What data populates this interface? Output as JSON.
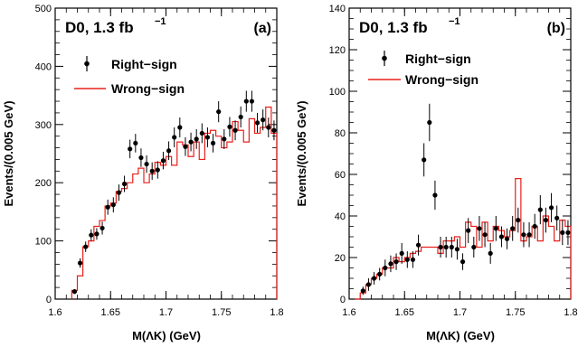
{
  "chart_data": [
    {
      "type": "scatter",
      "panel_label": "(a)",
      "title_main": "D0, 1.3 fb",
      "title_sup": "−1",
      "xlabel": "M(ΛK) (GeV)",
      "ylabel": "Events/(0.005 GeV)",
      "xlim": [
        1.6,
        1.8
      ],
      "ylim": [
        0,
        500
      ],
      "xticks": [
        "1.6",
        "1.65",
        "1.7",
        "1.75",
        "1.8"
      ],
      "yticks": [
        "0",
        "100",
        "200",
        "300",
        "400",
        "500"
      ],
      "legend_position": "top-left",
      "series": [
        {
          "name": "Right−sign",
          "style": "points-with-error-bars",
          "color": "#000000",
          "x": [
            1.6175,
            1.6225,
            1.6275,
            1.6325,
            1.6375,
            1.6425,
            1.6475,
            1.6525,
            1.6575,
            1.6625,
            1.6675,
            1.6725,
            1.6775,
            1.6825,
            1.6875,
            1.6925,
            1.6975,
            1.7025,
            1.7075,
            1.7125,
            1.7175,
            1.7225,
            1.7275,
            1.7325,
            1.7375,
            1.7425,
            1.7475,
            1.7525,
            1.7575,
            1.7625,
            1.7675,
            1.7725,
            1.7775,
            1.7825,
            1.7875,
            1.7925,
            1.7975
          ],
          "y": [
            13,
            62,
            90,
            110,
            112,
            122,
            158,
            162,
            183,
            198,
            258,
            268,
            243,
            232,
            220,
            222,
            238,
            255,
            278,
            295,
            262,
            270,
            275,
            285,
            278,
            268,
            322,
            275,
            296,
            290,
            313,
            340,
            340,
            303,
            308,
            295,
            290
          ],
          "yerr": [
            4,
            8,
            9,
            10,
            10,
            11,
            13,
            13,
            14,
            14,
            16,
            16,
            16,
            15,
            15,
            15,
            15,
            16,
            17,
            17,
            16,
            16,
            17,
            17,
            17,
            16,
            18,
            17,
            17,
            17,
            18,
            18,
            18,
            17,
            18,
            17,
            17
          ]
        },
        {
          "name": "Wrong−sign",
          "style": "step",
          "color": "#e8201c",
          "x": [
            1.6175,
            1.6225,
            1.6275,
            1.6325,
            1.6375,
            1.6425,
            1.6475,
            1.6525,
            1.6575,
            1.6625,
            1.6675,
            1.6725,
            1.6775,
            1.6825,
            1.6875,
            1.6925,
            1.6975,
            1.7025,
            1.7075,
            1.7125,
            1.7175,
            1.7225,
            1.7275,
            1.7325,
            1.7375,
            1.7425,
            1.7475,
            1.7525,
            1.7575,
            1.7625,
            1.7675,
            1.7725,
            1.7775,
            1.7825,
            1.7875,
            1.7925,
            1.7975
          ],
          "y": [
            15,
            40,
            90,
            100,
            125,
            135,
            160,
            165,
            185,
            190,
            200,
            215,
            225,
            200,
            215,
            235,
            230,
            245,
            230,
            270,
            265,
            245,
            270,
            240,
            285,
            290,
            280,
            260,
            270,
            305,
            290,
            270,
            310,
            285,
            295,
            330,
            285
          ]
        }
      ]
    },
    {
      "type": "scatter",
      "panel_label": "(b)",
      "title_main": "D0, 1.3 fb",
      "title_sup": "−1",
      "xlabel": "M(ΛK) (GeV)",
      "ylabel": "Events/(0.005 GeV)",
      "xlim": [
        1.6,
        1.8
      ],
      "ylim": [
        0,
        140
      ],
      "xticks": [
        "1.6",
        "1.65",
        "1.7",
        "1.75",
        "1.8"
      ],
      "yticks": [
        "0",
        "20",
        "40",
        "60",
        "80",
        "100",
        "120",
        "140"
      ],
      "legend_position": "top-left",
      "series": [
        {
          "name": "Right−sign",
          "style": "points-with-error-bars",
          "color": "#000000",
          "x": [
            1.6125,
            1.6175,
            1.6225,
            1.6275,
            1.6325,
            1.6375,
            1.6425,
            1.6475,
            1.6525,
            1.6575,
            1.6625,
            1.6675,
            1.6725,
            1.6775,
            1.6825,
            1.6875,
            1.6925,
            1.6975,
            1.7025,
            1.7075,
            1.7125,
            1.7175,
            1.7225,
            1.7275,
            1.7325,
            1.7375,
            1.7425,
            1.7475,
            1.7525,
            1.7575,
            1.7625,
            1.7675,
            1.7725,
            1.7775,
            1.7825,
            1.7875,
            1.7925,
            1.7975
          ],
          "y": [
            4,
            7,
            10,
            12,
            15,
            17,
            18,
            22,
            19,
            19,
            26,
            67,
            85,
            50,
            25,
            25,
            25,
            24,
            18,
            33,
            25,
            34,
            31,
            22,
            34,
            30,
            29,
            34,
            38,
            31,
            31,
            35,
            43,
            38,
            44,
            39,
            32,
            32
          ],
          "yerr": [
            2,
            3,
            3,
            3,
            4,
            4,
            4,
            5,
            4,
            4,
            5,
            8,
            9,
            7,
            5,
            5,
            5,
            5,
            4,
            6,
            5,
            6,
            6,
            5,
            6,
            5,
            5,
            6,
            6,
            6,
            6,
            6,
            7,
            6,
            7,
            6,
            6,
            6
          ]
        },
        {
          "name": "Wrong−sign",
          "style": "step",
          "color": "#e8201c",
          "x": [
            1.6075,
            1.6125,
            1.6175,
            1.6225,
            1.6275,
            1.6325,
            1.6375,
            1.6425,
            1.6475,
            1.6525,
            1.6575,
            1.6625,
            1.6675,
            1.6725,
            1.6775,
            1.6825,
            1.6875,
            1.6925,
            1.6975,
            1.7025,
            1.7075,
            1.7125,
            1.7175,
            1.7225,
            1.7275,
            1.7325,
            1.7375,
            1.7425,
            1.7475,
            1.7525,
            1.7575,
            1.7625,
            1.7675,
            1.7725,
            1.7775,
            1.7825,
            1.7875,
            1.7925,
            1.7975
          ],
          "y": [
            0,
            3,
            7,
            10,
            12,
            15,
            15,
            20,
            18,
            20,
            22,
            23,
            25,
            25,
            25,
            22,
            28,
            28,
            30,
            25,
            37,
            35,
            25,
            37,
            28,
            35,
            33,
            30,
            33,
            58,
            28,
            30,
            35,
            28,
            40,
            35,
            28,
            38,
            35
          ]
        }
      ]
    }
  ]
}
